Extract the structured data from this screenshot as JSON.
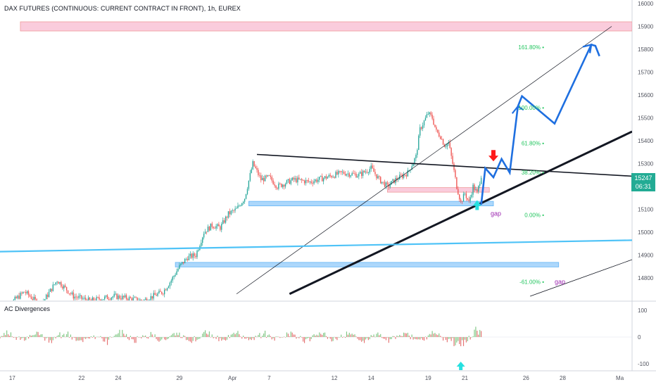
{
  "header": {
    "title": "DAX FUTURES (CONTINUOUS: CURRENT CONTRACT IN FRONT), 1h, EUREX"
  },
  "indicator": {
    "title": "AC Divergences"
  },
  "price_tag": {
    "price": "15247",
    "countdown": "06:31"
  },
  "fib_levels": [
    {
      "label": "161.80%",
      "price": 15810
    },
    {
      "label": "100.00%",
      "price": 15545
    },
    {
      "label": "61.80%",
      "price": 15390
    },
    {
      "label": "38.20%",
      "price": 15262
    },
    {
      "label": "0.00%",
      "price": 15075
    },
    {
      "label": "-61.00%",
      "price": 14783
    }
  ],
  "gap_labels": [
    {
      "text": "gap",
      "price": 15082
    },
    {
      "text": "gap",
      "price": 14783
    }
  ],
  "colors": {
    "up": "#26a69a",
    "down": "#ef5350",
    "projection": "#1e6fe0",
    "cyan_line": "#4fc3f7",
    "fib": "#22c55e",
    "gap": "#9c27b0",
    "red_zone": "#f8bbd0",
    "blue_zone": "#90caf9",
    "arrow_up": "#26e0e0",
    "arrow_down": "#ff1a1a"
  },
  "chart_data": {
    "type": "candlestick",
    "title": "DAX FUTURES (CONTINUOUS: CURRENT CONTRACT IN FRONT), 1h, EUREX",
    "y_axis": {
      "range": [
        14720,
        16000
      ],
      "ticks": [
        16000,
        15900,
        15800,
        15700,
        15600,
        15500,
        15400,
        15300,
        15200,
        15100,
        15000,
        14900,
        14800
      ]
    },
    "x_axis": {
      "range_index": [
        0,
        155
      ],
      "ticks": [
        {
          "label": "17",
          "index": 3
        },
        {
          "label": "22",
          "index": 20
        },
        {
          "label": "24",
          "index": 29
        },
        {
          "label": "29",
          "index": 44
        },
        {
          "label": "Apr",
          "index": 57
        },
        {
          "label": "7",
          "index": 66
        },
        {
          "label": "12",
          "index": 82
        },
        {
          "label": "14",
          "index": 91
        },
        {
          "label": "19",
          "index": 105
        },
        {
          "label": "21",
          "index": 114
        },
        {
          "label": "26",
          "index": 129
        },
        {
          "label": "28",
          "index": 138
        },
        {
          "label": "Ma",
          "index": 152
        }
      ]
    },
    "price_path": [
      [
        0,
        14650
      ],
      [
        6,
        14740
      ],
      [
        10,
        14680
      ],
      [
        14,
        14790
      ],
      [
        18,
        14720
      ],
      [
        22,
        14700
      ],
      [
        28,
        14720
      ],
      [
        35,
        14700
      ],
      [
        40,
        14740
      ],
      [
        42,
        14790
      ],
      [
        44,
        14850
      ],
      [
        46,
        14890
      ],
      [
        48,
        14900
      ],
      [
        50,
        15000
      ],
      [
        52,
        15030
      ],
      [
        54,
        15020
      ],
      [
        56,
        15080
      ],
      [
        58,
        15100
      ],
      [
        60,
        15150
      ],
      [
        62,
        15300
      ],
      [
        64,
        15230
      ],
      [
        66,
        15240
      ],
      [
        68,
        15200
      ],
      [
        72,
        15230
      ],
      [
        76,
        15220
      ],
      [
        80,
        15240
      ],
      [
        84,
        15260
      ],
      [
        88,
        15250
      ],
      [
        91,
        15280
      ],
      [
        93,
        15230
      ],
      [
        95,
        15200
      ],
      [
        97,
        15230
      ],
      [
        100,
        15260
      ],
      [
        102,
        15330
      ],
      [
        103,
        15450
      ],
      [
        105,
        15520
      ],
      [
        106,
        15500
      ],
      [
        107,
        15440
      ],
      [
        108,
        15420
      ],
      [
        109,
        15380
      ],
      [
        110,
        15390
      ],
      [
        111,
        15300
      ],
      [
        112,
        15200
      ],
      [
        113,
        15130
      ],
      [
        114,
        15170
      ],
      [
        115,
        15130
      ],
      [
        116,
        15200
      ],
      [
        117,
        15170
      ],
      [
        118,
        15250
      ]
    ],
    "oscillator": {
      "name": "AC Divergences",
      "range": [
        -100,
        100
      ],
      "ticks": [
        100,
        0,
        -100
      ]
    },
    "projection_path": [
      [
        118,
        15120
      ],
      [
        119,
        15280
      ],
      [
        121,
        15240
      ],
      [
        123,
        15320
      ],
      [
        125,
        15260
      ],
      [
        127,
        15550
      ],
      [
        128,
        15595
      ],
      [
        136,
        15475
      ],
      [
        145,
        15820
      ],
      [
        146,
        15815
      ],
      [
        147,
        15770
      ]
    ],
    "levels": [
      {
        "type": "zone",
        "color": "red",
        "from_index": 5,
        "to_index": 155,
        "price_low": 15880,
        "price_high": 15920
      },
      {
        "type": "zone",
        "color": "red",
        "from_index": 95,
        "to_index": 120,
        "price_low": 15175,
        "price_high": 15195
      },
      {
        "type": "zone",
        "color": "blue",
        "from_index": 61,
        "to_index": 121,
        "price_low": 15115,
        "price_high": 15135
      },
      {
        "type": "zone",
        "color": "blue",
        "from_index": 43,
        "to_index": 137,
        "price_low": 14848,
        "price_high": 14868
      }
    ],
    "trendlines": [
      {
        "from": [
          63,
          15340
        ],
        "to": [
          155,
          15245
        ]
      },
      {
        "from": [
          71,
          14730
        ],
        "to": [
          155,
          15440
        ]
      },
      {
        "from": [
          58,
          14730
        ],
        "to": [
          150,
          15900
        ]
      },
      {
        "from": [
          0,
          14915
        ],
        "to": [
          155,
          14965
        ]
      },
      {
        "from": [
          130,
          14720
        ],
        "to": [
          155,
          14880
        ]
      }
    ],
    "arrows": [
      {
        "dir": "down",
        "index": 121,
        "price": 15310
      },
      {
        "dir": "up",
        "index": 117,
        "price": 15140
      },
      {
        "dir": "up",
        "index": 113,
        "panel": "oscillator"
      }
    ]
  }
}
